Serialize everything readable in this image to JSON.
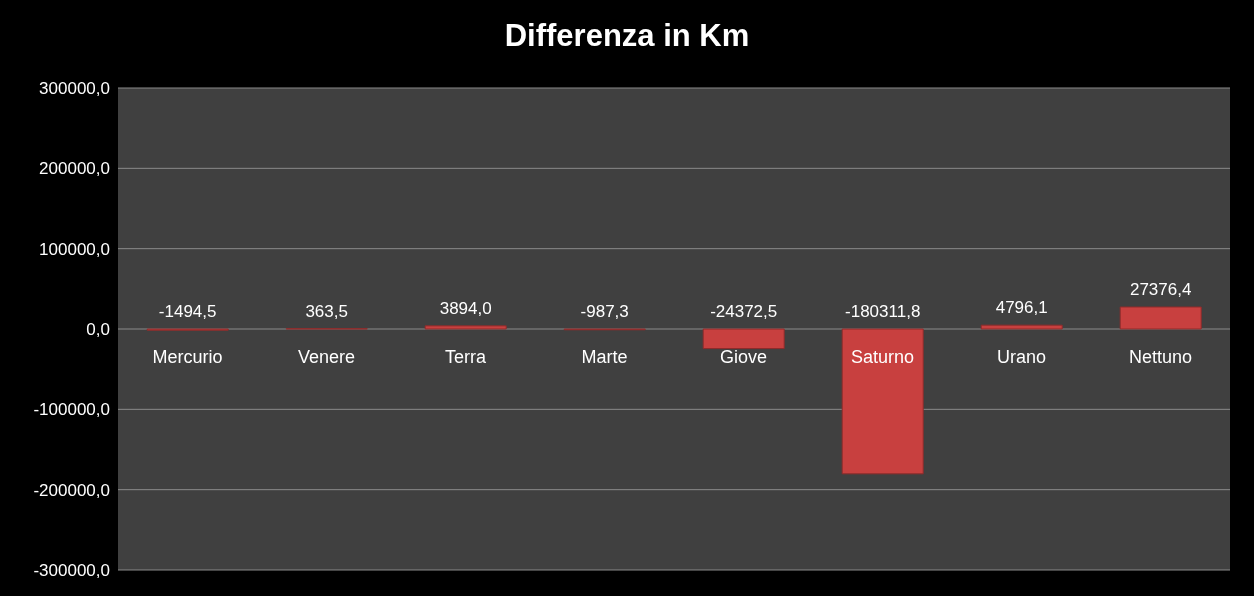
{
  "chart_data": {
    "type": "bar",
    "title": "Differenza in Km",
    "categories": [
      "Mercurio",
      "Venere",
      "Terra",
      "Marte",
      "Giove",
      "Saturno",
      "Urano",
      "Nettuno"
    ],
    "values": [
      -1494.5,
      363.5,
      3894.0,
      -987.3,
      -24372.5,
      -180311.8,
      4796.1,
      27376.4
    ],
    "color": "#c8403f",
    "ylim": [
      -300000,
      300000
    ],
    "yticks": [
      {
        "value": -300000,
        "label": "-300000,0"
      },
      {
        "value": -200000,
        "label": "-200000,0"
      },
      {
        "value": -100000,
        "label": "-100000,0"
      },
      {
        "value": 0,
        "label": "0,0"
      },
      {
        "value": 100000,
        "label": "100000,0"
      },
      {
        "value": 200000,
        "label": "200000,0"
      },
      {
        "value": 300000,
        "label": "300000,0"
      }
    ],
    "value_labels": [
      "-1494,5",
      "363,5",
      "3894,0",
      "-987,3",
      "-24372,5",
      "-180311,8",
      "4796,1",
      "27376,4"
    ],
    "grid": "y"
  }
}
